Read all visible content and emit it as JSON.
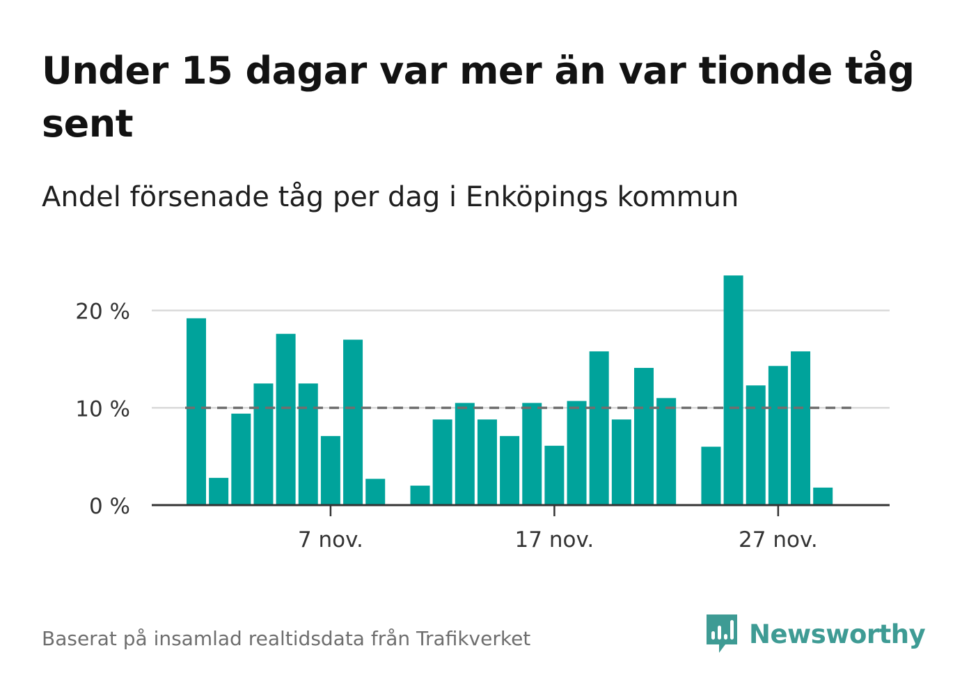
{
  "header": {
    "title": "Under 15 dagar var mer än var tionde tåg sent",
    "subtitle": "Andel försenade tåg per dag i Enköpings kommun"
  },
  "footer": {
    "source": "Baserat på insamlad realtidsdata från Trafikverket",
    "brand": "Newsworthy"
  },
  "colors": {
    "bar": "#00a39b",
    "reference_line": "#6f6f6f",
    "grid": "#d9d9d9",
    "axis": "#333333",
    "brand": "#3e9b94"
  },
  "chart_data": {
    "type": "bar",
    "title": "Andel försenade tåg per dag i Enköpings kommun",
    "xlabel": "",
    "ylabel": "",
    "x_start_day": 1,
    "categories": [
      "1 nov.",
      "2 nov.",
      "3 nov.",
      "4 nov.",
      "5 nov.",
      "6 nov.",
      "7 nov.",
      "8 nov.",
      "9 nov.",
      "10 nov.",
      "11 nov.",
      "12 nov.",
      "13 nov.",
      "14 nov.",
      "15 nov.",
      "16 nov.",
      "17 nov.",
      "18 nov.",
      "19 nov.",
      "20 nov.",
      "21 nov.",
      "22 nov.",
      "23 nov.",
      "24 nov.",
      "25 nov.",
      "26 nov.",
      "27 nov.",
      "28 nov.",
      "29 nov.",
      "30 nov."
    ],
    "values": [
      19.2,
      2.8,
      9.4,
      12.5,
      17.6,
      12.5,
      7.1,
      17.0,
      2.7,
      null,
      2.0,
      8.8,
      10.5,
      8.8,
      7.1,
      10.5,
      6.1,
      10.7,
      15.8,
      8.8,
      14.1,
      11.0,
      null,
      6.0,
      23.6,
      12.3,
      14.3,
      15.8,
      1.8,
      null
    ],
    "reference_line": 10,
    "ylim": [
      0,
      25
    ],
    "yticks": [
      0,
      10,
      20
    ],
    "ytick_labels": [
      "0 %",
      "10 %",
      "20 %"
    ],
    "xtick_days": [
      7,
      17,
      27
    ],
    "xtick_labels": [
      "7 nov.",
      "17 nov.",
      "27 nov."
    ],
    "grid": true,
    "legend": "none"
  }
}
